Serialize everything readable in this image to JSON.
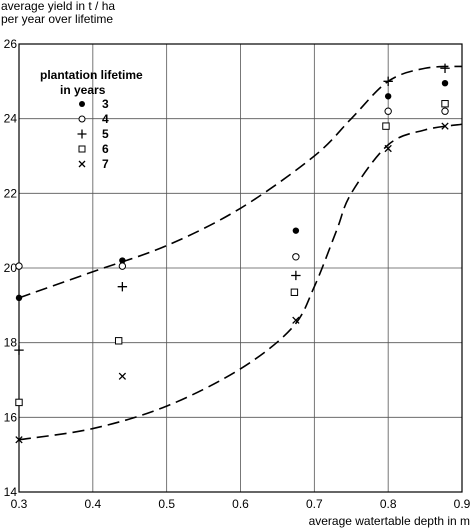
{
  "chart_data": {
    "type": "scatter",
    "ylabel_lines": [
      "average yield in t / ha",
      "per year over lifetime"
    ],
    "xlabel": "average watertable depth in m",
    "xlim": [
      0.3,
      0.9
    ],
    "ylim": [
      14,
      26
    ],
    "x_ticks": [
      "0.3",
      "0.4",
      "0.5",
      "0.6",
      "0.7",
      "0.8",
      "0.9"
    ],
    "y_ticks": [
      "14",
      "16",
      "18",
      "20",
      "22",
      "24",
      "26"
    ],
    "grid": true,
    "legend": {
      "title_lines": [
        "plantation lifetime",
        "in years"
      ],
      "placement": "upper-left",
      "entries": [
        {
          "label": "3",
          "marker": "filled-circle"
        },
        {
          "label": "4",
          "marker": "open-circle"
        },
        {
          "label": "5",
          "marker": "plus"
        },
        {
          "label": "6",
          "marker": "open-square"
        },
        {
          "label": "7",
          "marker": "x"
        }
      ]
    },
    "series": [
      {
        "name": "3",
        "marker": "filled-circle",
        "points": [
          [
            0.3,
            19.2
          ],
          [
            0.44,
            20.2
          ],
          [
            0.675,
            21.0
          ],
          [
            0.8,
            24.6
          ],
          [
            0.877,
            24.95
          ]
        ]
      },
      {
        "name": "4",
        "marker": "open-circle",
        "points": [
          [
            0.3,
            20.05
          ],
          [
            0.44,
            20.05
          ],
          [
            0.675,
            20.3
          ],
          [
            0.8,
            24.2
          ],
          [
            0.877,
            24.2
          ]
        ]
      },
      {
        "name": "5",
        "marker": "plus",
        "points": [
          [
            0.3,
            17.8
          ],
          [
            0.44,
            19.5
          ],
          [
            0.675,
            19.8
          ],
          [
            0.8,
            25.0
          ],
          [
            0.877,
            25.35
          ]
        ]
      },
      {
        "name": "6",
        "marker": "open-square",
        "points": [
          [
            0.3,
            16.4
          ],
          [
            0.435,
            18.05
          ],
          [
            0.673,
            19.35
          ],
          [
            0.797,
            23.8
          ],
          [
            0.877,
            24.4
          ]
        ]
      },
      {
        "name": "7",
        "marker": "x",
        "points": [
          [
            0.3,
            15.4
          ],
          [
            0.44,
            17.1
          ],
          [
            0.675,
            18.6
          ],
          [
            0.8,
            23.2
          ],
          [
            0.877,
            23.8
          ]
        ]
      }
    ],
    "curves": [
      {
        "style": "dashed",
        "points": [
          [
            0.3,
            19.2
          ],
          [
            0.4,
            19.9
          ],
          [
            0.5,
            20.6
          ],
          [
            0.6,
            21.6
          ],
          [
            0.7,
            23.0
          ],
          [
            0.75,
            24.0
          ],
          [
            0.8,
            25.0
          ],
          [
            0.85,
            25.35
          ],
          [
            0.9,
            25.4
          ]
        ]
      },
      {
        "style": "dashed",
        "points": [
          [
            0.3,
            15.4
          ],
          [
            0.4,
            15.7
          ],
          [
            0.5,
            16.3
          ],
          [
            0.6,
            17.3
          ],
          [
            0.67,
            18.4
          ],
          [
            0.7,
            19.5
          ],
          [
            0.73,
            21.0
          ],
          [
            0.75,
            22.0
          ],
          [
            0.8,
            23.3
          ],
          [
            0.85,
            23.7
          ],
          [
            0.9,
            23.85
          ]
        ]
      }
    ]
  }
}
